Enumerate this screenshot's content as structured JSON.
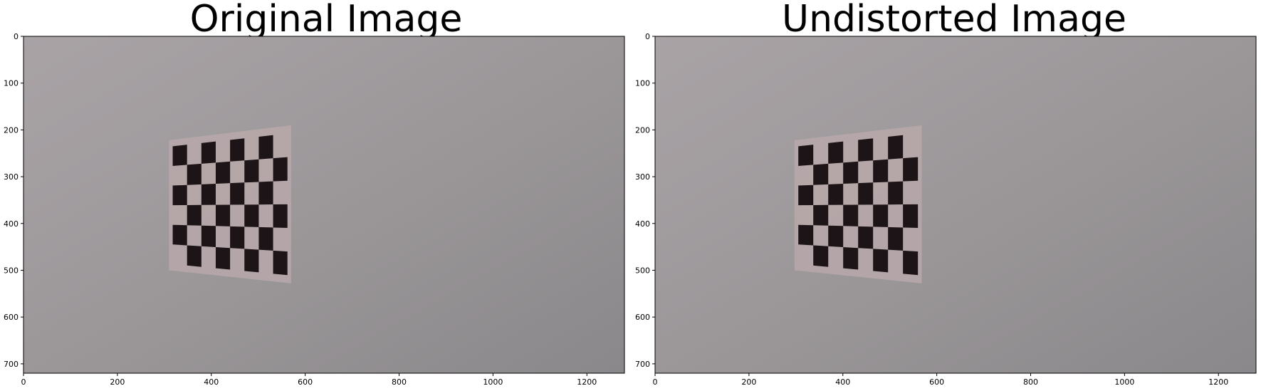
{
  "panels": [
    {
      "title": "Original Image"
    },
    {
      "title": "Undistorted Image"
    }
  ],
  "axes": {
    "x_ticks": [
      "0",
      "200",
      "400",
      "600",
      "800",
      "1000",
      "1200"
    ],
    "y_ticks": [
      "0",
      "100",
      "200",
      "300",
      "400",
      "500",
      "600",
      "700"
    ],
    "x_range": [
      0,
      1280
    ],
    "y_range": [
      720,
      0
    ]
  },
  "image": {
    "width": 1280,
    "height": 720,
    "wall_color_top": "#a8a2a5",
    "wall_color_bottom": "#8d8b8d",
    "board_paper_color": "#b9a8aa",
    "board_square_color": "#1c1416",
    "board_grid": {
      "cols": 8,
      "rows": 6
    }
  },
  "board_corners": {
    "original": {
      "tl": [
        310,
        222
      ],
      "tr": [
        570,
        190
      ],
      "br": [
        570,
        528
      ],
      "bl": [
        310,
        500
      ]
    },
    "undistorted": {
      "tl": [
        297,
        222
      ],
      "tr": [
        568,
        190
      ],
      "br": [
        568,
        528
      ],
      "bl": [
        297,
        500
      ]
    }
  }
}
